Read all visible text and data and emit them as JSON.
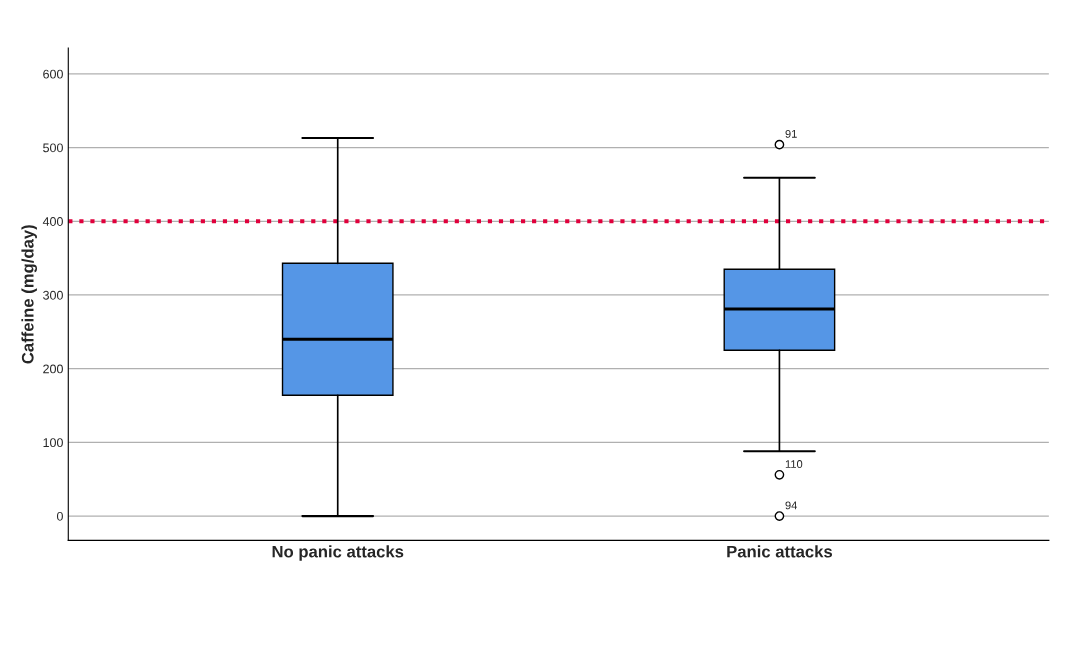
{
  "chart_data": {
    "type": "box",
    "ylabel": "Caffeine (mg/day)",
    "categories": [
      "No panic attacks",
      "Panic attacks"
    ],
    "boxes": [
      {
        "low": 0,
        "q1": 164,
        "median": 240,
        "q3": 343,
        "high": 513
      },
      {
        "low": 88,
        "q1": 225,
        "median": 281,
        "q3": 335,
        "high": 459,
        "outliers": [
          504,
          56,
          0
        ]
      }
    ],
    "color": "#5596e6",
    "ylim": [
      -33,
      635
    ],
    "yticks": [
      0,
      100,
      200,
      300,
      400,
      500,
      600
    ],
    "grid": "y",
    "ref_lines": [
      {
        "axis": "y",
        "value": 400,
        "color": "#e0003c",
        "line_style": "dotted"
      }
    ],
    "annotations": [
      "91",
      "110",
      "94"
    ]
  }
}
